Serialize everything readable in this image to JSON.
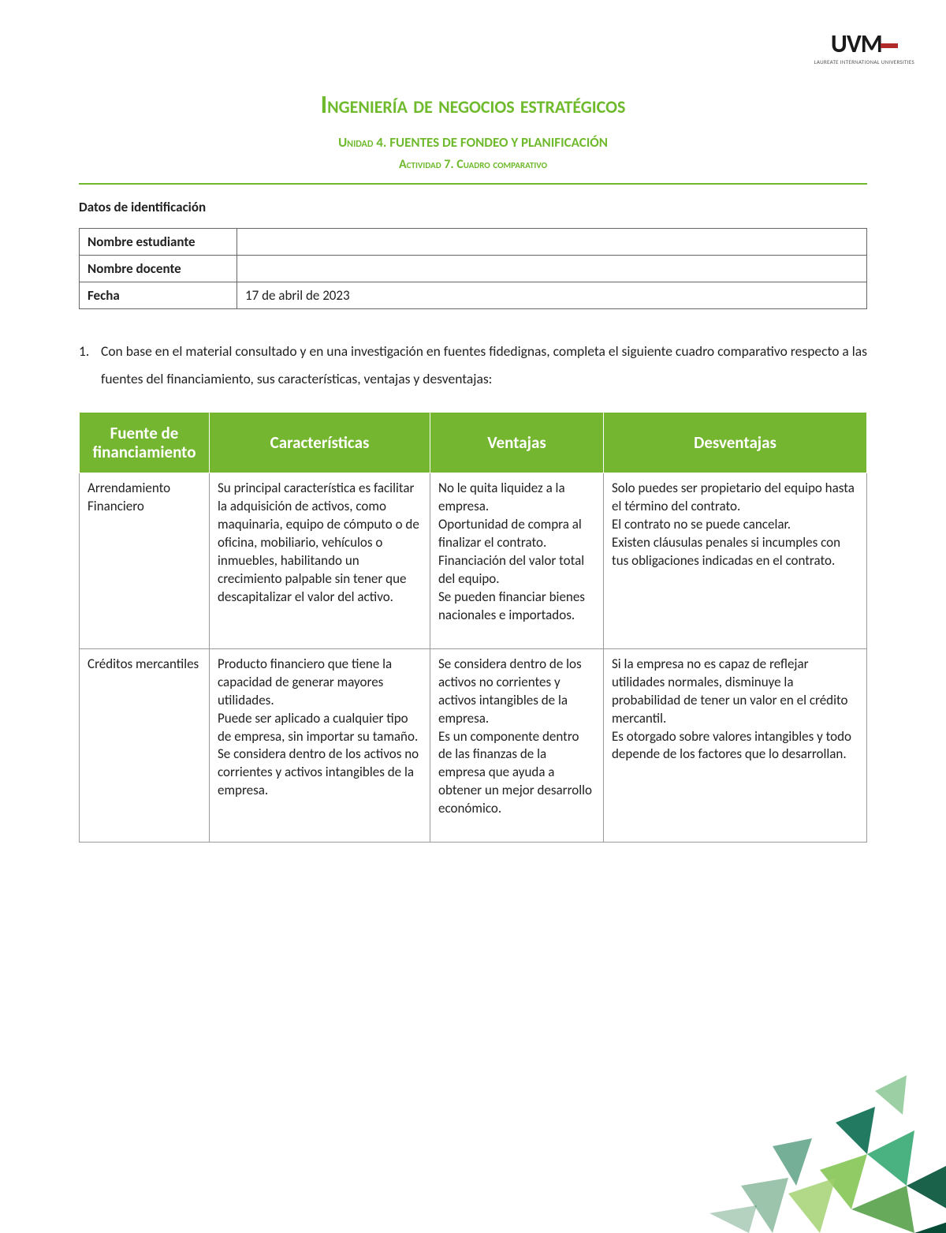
{
  "colors": {
    "green": "#6fba2c",
    "green_header": "#74b62f",
    "rule": "#6fba2c",
    "logo_red": "#b02a2a",
    "text": "#222222",
    "border": "#666666",
    "cell_border": "#999999"
  },
  "logo": {
    "main": "UVM",
    "sub": "LAUREATE INTERNATIONAL UNIVERSITIES"
  },
  "title": "Ingeniería de negocios estratégicos",
  "subtitle1": "Unidad 4. FUENTES DE FONDEO Y PLANIFICACIÓN",
  "subtitle2": "Actividad 7. Cuadro comparativo",
  "section_label": "Datos de identificación",
  "id_table": {
    "rows": [
      {
        "label": "Nombre estudiante",
        "value": ""
      },
      {
        "label": "Nombre docente",
        "value": ""
      },
      {
        "label": "Fecha",
        "value": "17 de abril de 2023"
      }
    ]
  },
  "instruction": {
    "number": "1.",
    "text": "Con base en el material consultado y en una investigación en fuentes fidedignas, completa el siguiente cuadro comparativo respecto a las fuentes del financiamiento, sus características, ventajas y desventajas:"
  },
  "comp_table": {
    "headers": [
      "Fuente de financiamiento",
      "Características",
      "Ventajas",
      "Desventajas"
    ],
    "rows": [
      {
        "c0": "Arrendamiento Financiero",
        "c1": "Su principal característica es facilitar la adquisición de activos, como maquinaria, equipo de cómputo o de oficina, mobiliario, vehículos o inmuebles, habilitando un crecimiento palpable sin tener que descapitalizar el valor del activo.",
        "c2": "No le quita liquidez a la empresa.\nOportunidad de compra al finalizar el contrato.\nFinanciación del valor total del equipo.\nSe pueden financiar bienes nacionales e importados.",
        "c3": "Solo puedes ser propietario del equipo hasta el término del contrato.\nEl contrato no se puede cancelar.\nExisten cláusulas penales si incumples con tus obligaciones indicadas en el contrato."
      },
      {
        "c0": "Créditos mercantiles",
        "c1": "Producto financiero que tiene la capacidad de generar mayores utilidades.\nPuede ser aplicado a cualquier tipo de empresa, sin importar su tamaño.\nSe considera dentro de los activos no corrientes y activos intangibles de la empresa.",
        "c2": "Se considera dentro de los activos no corrientes y activos intangibles de la empresa.\nEs un componente dentro de las finanzas de la empresa que ayuda a obtener un mejor desarrollo económico.",
        "c3": "Si la empresa no es capaz de reflejar utilidades normales, disminuye la probabilidad de tener un valor en el crédito mercantil.\nEs otorgado sobre valores intangibles y todo depende de los factores que lo desarrollan."
      }
    ]
  }
}
